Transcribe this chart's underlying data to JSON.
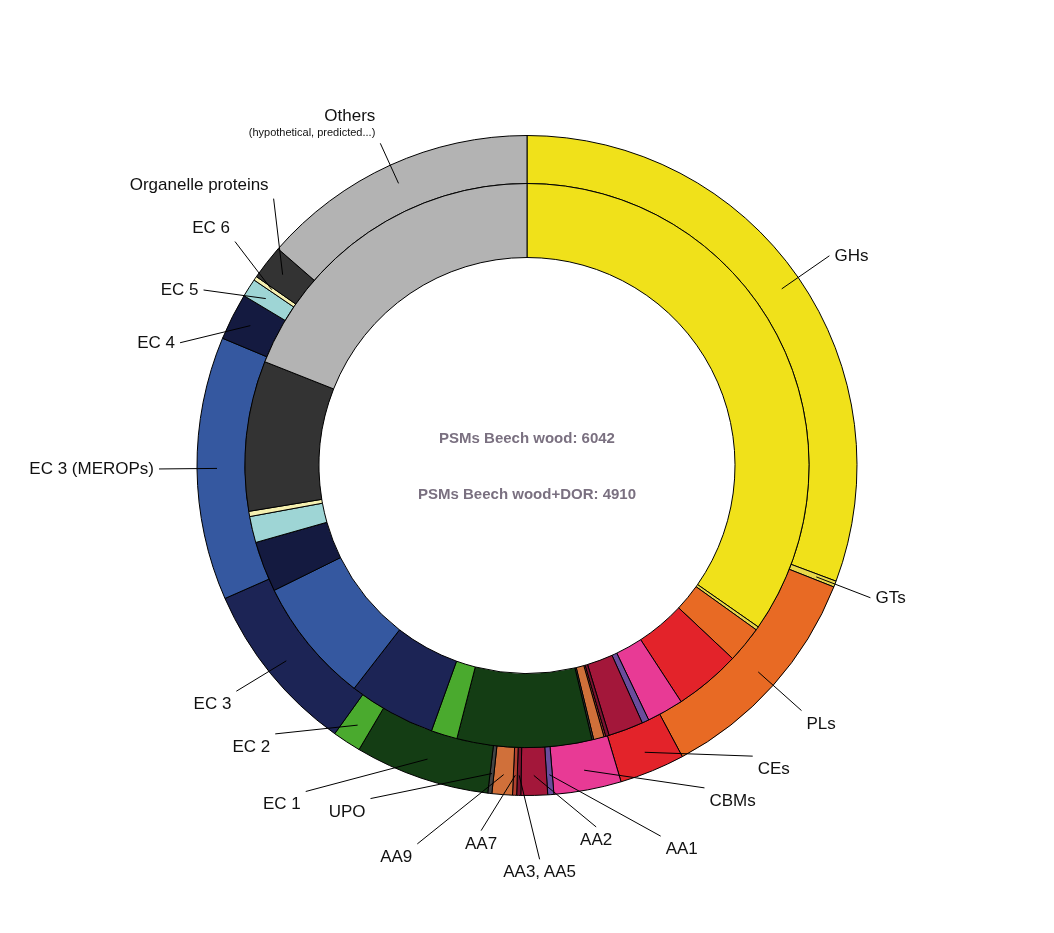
{
  "chart_data": {
    "type": "donut",
    "categories": [
      "GHs",
      "GTs",
      "PLs",
      "CEs",
      "CBMs",
      "AA1",
      "AA2",
      "AA3, AA5",
      "AA7",
      "AA9",
      "UPO",
      "EC 1",
      "EC 2",
      "EC 3",
      "EC 3 (MEROPs)",
      "EC 4",
      "EC 5",
      "EC 6",
      "Organelle proteins",
      "Others"
    ],
    "colors": [
      "#f0e11a",
      "#e8d84a",
      "#e86a24",
      "#e3232a",
      "#e83a95",
      "#6a4c9c",
      "#a3173a",
      "#7a1230",
      "#b04030",
      "#d0703a",
      "#444444",
      "#143d14",
      "#4aaa2e",
      "#1c2455",
      "#3558a0",
      "#141a40",
      "#9ed5d5",
      "#f5f0b0",
      "#333333",
      "#b3b3b3"
    ],
    "series": [
      {
        "values": [
          30.7,
          0.3,
          11.2,
          3.2,
          3.3,
          0.3,
          1.3,
          0.2,
          0.2,
          1.0,
          0.2,
          6.6,
          1.4,
          8.5,
          12.9,
          2.3,
          0.9,
          0.2,
          1.7,
          13.6
        ]
      },
      {
        "values": [
          34.7,
          0.2,
          2.1,
          3.8,
          2.1,
          0.4,
          2.0,
          0.2,
          0.1,
          0.6,
          0.1,
          7.7,
          1.5,
          5.0,
          7.2,
          2.9,
          1.5,
          0.3,
          8.6,
          19.0
        ]
      }
    ],
    "annotations": [
      "PSMs Beech wood: 6042",
      "PSMs Beech wood+DOR: 4910",
      {
        "text": "(hypothetical, predicted...)",
        "x": "Others"
      }
    ]
  }
}
